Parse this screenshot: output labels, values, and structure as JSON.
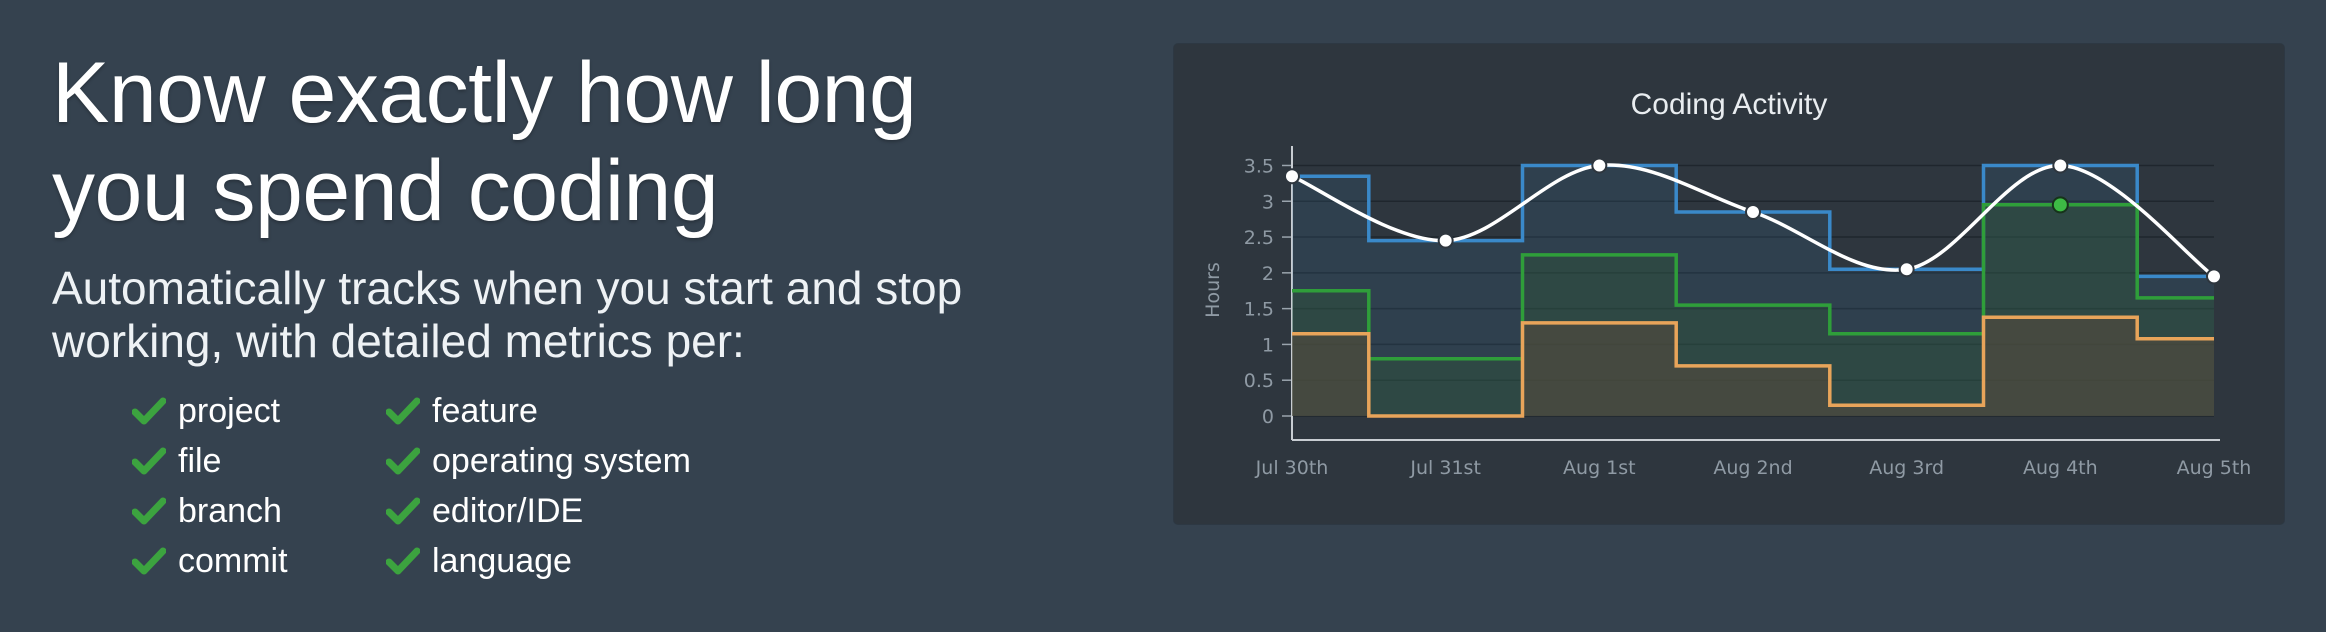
{
  "hero": {
    "title_line1": "Know exactly how long",
    "title_line2": "you spend coding",
    "subtitle_line1": "Automatically tracks when you start and stop",
    "subtitle_line2": "working, with detailed metrics per:",
    "features": [
      "project",
      "file",
      "branch",
      "commit",
      "feature",
      "operating system",
      "editor/IDE",
      "language"
    ]
  },
  "colors": {
    "background": "#35424f",
    "panel": "#2e363e",
    "check": "#3ca33f",
    "blue": "#3a89c9",
    "green": "#2f9e3a",
    "orange": "#e8a45a",
    "white": "#ffffff"
  },
  "icons": {
    "check": "checkmark-icon"
  },
  "chart_data": {
    "type": "line",
    "title": "Coding Activity",
    "ylabel": "Hours",
    "xlabel": "",
    "ylim": [
      0,
      3.8
    ],
    "yticks": [
      0,
      0.5,
      1,
      1.5,
      2,
      2.5,
      3,
      3.5
    ],
    "categories": [
      "Jul 30th",
      "Jul 31st",
      "Aug 1st",
      "Aug 2nd",
      "Aug 3rd",
      "Aug 4th",
      "Aug 5th"
    ],
    "series": [
      {
        "style": "step",
        "color": "#3a89c9",
        "values": [
          3.35,
          2.45,
          3.5,
          2.85,
          2.05,
          3.5,
          1.95
        ]
      },
      {
        "style": "step",
        "color": "#2f9e3a",
        "values": [
          1.75,
          0.8,
          2.25,
          1.55,
          1.15,
          2.95,
          1.65
        ]
      },
      {
        "style": "step",
        "color": "#e8a45a",
        "values": [
          1.15,
          0.0,
          1.3,
          0.7,
          0.15,
          1.38,
          1.08
        ]
      },
      {
        "style": "smooth-line",
        "color": "#ffffff",
        "values": [
          3.35,
          2.45,
          3.5,
          2.85,
          2.05,
          3.5,
          1.95
        ]
      }
    ],
    "highlight_point": {
      "category": "Aug 4th",
      "value": 2.95
    },
    "grid": true
  }
}
